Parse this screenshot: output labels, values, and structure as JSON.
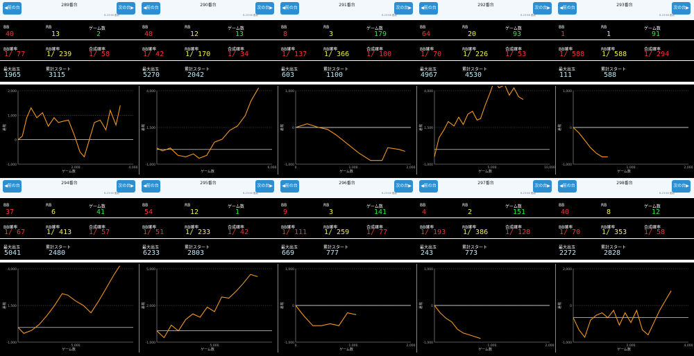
{
  "ui": {
    "prev_label": "◀前の台",
    "next_label": "次の台▶",
    "updated": "ft.23:58 更新"
  },
  "labels": {
    "bb": "BB",
    "rb": "RB",
    "games": "ゲーム数",
    "bb_prob": "BB確率",
    "rb_prob": "RB確率",
    "combined_prob": "合成確率",
    "max_payout": "最大出玉",
    "cumulative_start": "累計スタート",
    "y_axis": "差枚",
    "x_axis": "ゲーム数"
  },
  "colors": {
    "bb": "#ff3030",
    "rb": "#f2ee4c",
    "games": "#2ee84a",
    "cyan": "#bfe8f5",
    "line": "#f39a1c",
    "button": "#2b8fd1"
  },
  "machines": [
    {
      "number": "289番台",
      "bb": "40",
      "rb": "13",
      "games": "2",
      "bb_prob": "1/ 77",
      "rb_prob": "1/ 239",
      "combined_prob": "1/ 58",
      "max_payout": "1965",
      "cumulative_start": "3115",
      "chart_data": {
        "type": "line",
        "x_ticks": [
          "",
          "2,000",
          "4,000"
        ],
        "y_ticks": [
          "2,000",
          "1,000",
          "0",
          "-1,000"
        ],
        "ylim": [
          -1000,
          2000
        ],
        "xlim": [
          0,
          4000
        ],
        "baseline_y": 0,
        "series": [
          {
            "x": [
              0,
              150,
              300,
              450,
              650,
              850,
              1050,
              1250,
              1400,
              1550,
              1750,
              1950,
              2150,
              2300,
              2450,
              2650,
              2850,
              3050,
              3200,
              3400,
              3550
            ],
            "y": [
              0,
              150,
              900,
              1300,
              900,
              1100,
              550,
              900,
              700,
              750,
              800,
              200,
              -500,
              -700,
              -100,
              700,
              800,
              400,
              1200,
              600,
              1400
            ]
          }
        ]
      }
    },
    {
      "number": "290番台",
      "bb": "48",
      "rb": "12",
      "games": "13",
      "bb_prob": "1/ 42",
      "rb_prob": "1/ 170",
      "combined_prob": "1/ 34",
      "max_payout": "5270",
      "cumulative_start": "2042",
      "chart_data": {
        "type": "line",
        "x_ticks": [
          "",
          "",
          "6,000"
        ],
        "y_ticks": [
          "4,000",
          "1,500",
          "-1,000"
        ],
        "ylim": [
          -1000,
          4000
        ],
        "xlim": [
          0,
          6000
        ],
        "baseline_y": 0,
        "series": [
          {
            "x": [
              0,
              300,
              700,
              1100,
              1500,
              1900,
              2200,
              2600,
              3000,
              3400,
              3800,
              4200,
              4600,
              4900,
              5300
            ],
            "y": [
              100,
              -100,
              100,
              -400,
              -500,
              -300,
              -600,
              -400,
              500,
              700,
              1300,
              1600,
              2300,
              3300,
              4200
            ]
          }
        ]
      }
    },
    {
      "number": "291番台",
      "bb": "8",
      "rb": "3",
      "games": "179",
      "bb_prob": "1/ 137",
      "rb_prob": "1/ 366",
      "combined_prob": "1/ 100",
      "max_payout": "603",
      "cumulative_start": "1100",
      "chart_data": {
        "type": "line",
        "x_ticks": [
          "0",
          "1,000",
          "2,000"
        ],
        "y_ticks": [
          "1,000",
          "0",
          "-1,000"
        ],
        "ylim": [
          -1000,
          1000
        ],
        "xlim": [
          0,
          2000
        ],
        "baseline_y": 0,
        "series": [
          {
            "x": [
              0,
              200,
              400,
              550,
              700,
              900,
              1100,
              1300,
              1500,
              1600,
              1800,
              1900
            ],
            "y": [
              0,
              100,
              0,
              -50,
              -200,
              -450,
              -700,
              -900,
              -900,
              -550,
              -600,
              -650
            ]
          }
        ]
      }
    },
    {
      "number": "292番台",
      "bb": "64",
      "rb": "20",
      "games": "93",
      "bb_prob": "1/ 70",
      "rb_prob": "1/ 226",
      "combined_prob": "1/ 53",
      "max_payout": "4967",
      "cumulative_start": "4530",
      "chart_data": {
        "type": "line",
        "x_ticks": [
          "",
          "5,000",
          "10,000"
        ],
        "y_ticks": [
          "4,000",
          "1,500",
          "-1,000"
        ],
        "ylim": [
          -1000,
          4000
        ],
        "xlim": [
          0,
          10000
        ],
        "baseline_y": 0,
        "series": [
          {
            "x": [
              0,
              400,
              800,
              1200,
              1700,
              2100,
              2500,
              2900,
              3300,
              3700,
              4000,
              4400,
              4800,
              5200,
              5600,
              6100,
              6500,
              6900,
              7300,
              7700
            ],
            "y": [
              -500,
              800,
              1300,
              1900,
              1600,
              2200,
              1700,
              2400,
              2600,
              2000,
              2100,
              3000,
              3800,
              4700,
              4200,
              4400,
              3700,
              4200,
              3600,
              3400
            ]
          }
        ]
      }
    },
    {
      "number": "293番台",
      "bb": "1",
      "rb": "1",
      "games": "91",
      "bb_prob": "1/ 588",
      "rb_prob": "1/ 588",
      "combined_prob": "1/ 294",
      "max_payout": "111",
      "cumulative_start": "588",
      "chart_data": {
        "type": "line",
        "x_ticks": [
          "",
          "1,000",
          "2,000"
        ],
        "y_ticks": [
          "1,000",
          "0",
          "-1,000"
        ],
        "ylim": [
          -1000,
          1000
        ],
        "xlim": [
          0,
          2000
        ],
        "baseline_y": 0,
        "series": [
          {
            "x": [
              0,
              100,
              200,
              300,
              400,
              500,
              600
            ],
            "y": [
              0,
              -150,
              -350,
              -550,
              -700,
              -800,
              -800
            ]
          }
        ]
      }
    },
    {
      "number": "294番台",
      "bb": "37",
      "rb": "6",
      "games": "41",
      "bb_prob": "1/ 67",
      "rb_prob": "1/ 413",
      "combined_prob": "1/ 57",
      "max_payout": "5041",
      "cumulative_start": "2480",
      "chart_data": {
        "type": "line",
        "x_ticks": [
          "",
          "5,000",
          ""
        ],
        "y_ticks": [
          "4,000",
          "1,500",
          "-1,000"
        ],
        "ylim": [
          -1000,
          4000
        ],
        "xlim": [
          0,
          6000
        ],
        "baseline_y": 0,
        "series": [
          {
            "x": [
              0,
              300,
              700,
              1100,
              1500,
              1900,
              2300,
              2600,
              3000,
              3400,
              3800,
              4200,
              4600,
              5000,
              5300
            ],
            "y": [
              0,
              -400,
              -200,
              200,
              800,
              1500,
              2300,
              2200,
              1800,
              1500,
              1000,
              1800,
              2700,
              3600,
              4200
            ]
          }
        ]
      }
    },
    {
      "number": "295番台",
      "bb": "54",
      "rb": "12",
      "games": "1",
      "bb_prob": "1/ 51",
      "rb_prob": "1/ 233",
      "combined_prob": "1/ 42",
      "max_payout": "6233",
      "cumulative_start": "2803",
      "chart_data": {
        "type": "line",
        "x_ticks": [
          "",
          "5,000",
          ""
        ],
        "y_ticks": [
          "5,000",
          "2,000",
          "-1,000"
        ],
        "ylim": [
          -1000,
          5500
        ],
        "xlim": [
          0,
          8000
        ],
        "baseline_y": 0,
        "series": [
          {
            "x": [
              0,
              500,
              1000,
              1500,
              2000,
              2500,
              3000,
              3500,
              4000,
              4500,
              5000,
              5500,
              6000,
              6500,
              7000
            ],
            "y": [
              0,
              -600,
              500,
              0,
              1000,
              1500,
              1200,
              2100,
              1700,
              3000,
              2900,
              3500,
              4200,
              5000,
              4800
            ]
          }
        ]
      }
    },
    {
      "number": "296番台",
      "bb": "9",
      "rb": "3",
      "games": "141",
      "bb_prob": "1/ 111",
      "rb_prob": "1/ 259",
      "combined_prob": "1/ 77",
      "max_payout": "669",
      "cumulative_start": "777",
      "chart_data": {
        "type": "line",
        "x_ticks": [
          "0",
          "1,000",
          "2,000"
        ],
        "y_ticks": [
          "1,000",
          "0",
          "-1,000"
        ],
        "ylim": [
          -1000,
          1000
        ],
        "xlim": [
          0,
          2000
        ],
        "baseline_y": 0,
        "series": [
          {
            "x": [
              0,
              150,
              300,
              450,
              600,
              750,
              900,
              1050
            ],
            "y": [
              0,
              -300,
              -550,
              -550,
              -500,
              -550,
              -200,
              -250
            ]
          }
        ]
      }
    },
    {
      "number": "297番台",
      "bb": "4",
      "rb": "2",
      "games": "151",
      "bb_prob": "1/ 193",
      "rb_prob": "1/ 386",
      "combined_prob": "1/ 128",
      "max_payout": "243",
      "cumulative_start": "773",
      "chart_data": {
        "type": "line",
        "x_ticks": [
          "",
          "1,000",
          "2,000"
        ],
        "y_ticks": [
          "1,000",
          "0",
          "-1,000"
        ],
        "ylim": [
          -1000,
          1000
        ],
        "xlim": [
          0,
          2000
        ],
        "baseline_y": 0,
        "series": [
          {
            "x": [
              0,
              100,
              200,
              300,
              400,
              500,
              600,
              700,
              800
            ],
            "y": [
              0,
              -200,
              -350,
              -450,
              -650,
              -750,
              -800,
              -850,
              -900
            ]
          }
        ]
      }
    },
    {
      "number": "298番台",
      "bb": "40",
      "rb": "8",
      "games": "12",
      "bb_prob": "1/ 70",
      "rb_prob": "1/ 353",
      "combined_prob": "1/ 58",
      "max_payout": "2272",
      "cumulative_start": "2828",
      "chart_data": {
        "type": "line",
        "x_ticks": [
          "",
          "2,000",
          "4,000"
        ],
        "y_ticks": [
          "2,000",
          "0",
          "-1,000"
        ],
        "ylim": [
          -1000,
          2000
        ],
        "xlim": [
          0,
          4000
        ],
        "baseline_y": 0,
        "series": [
          {
            "x": [
              0,
              200,
              400,
              600,
              800,
              1000,
              1200,
              1400,
              1600,
              1800,
              2000,
              2200,
              2400,
              2600,
              2800,
              3000,
              3200,
              3400
            ],
            "y": [
              0,
              -500,
              -800,
              -100,
              100,
              200,
              0,
              300,
              -300,
              200,
              -200,
              300,
              -500,
              -700,
              -200,
              300,
              700,
              1100
            ]
          }
        ]
      }
    }
  ]
}
